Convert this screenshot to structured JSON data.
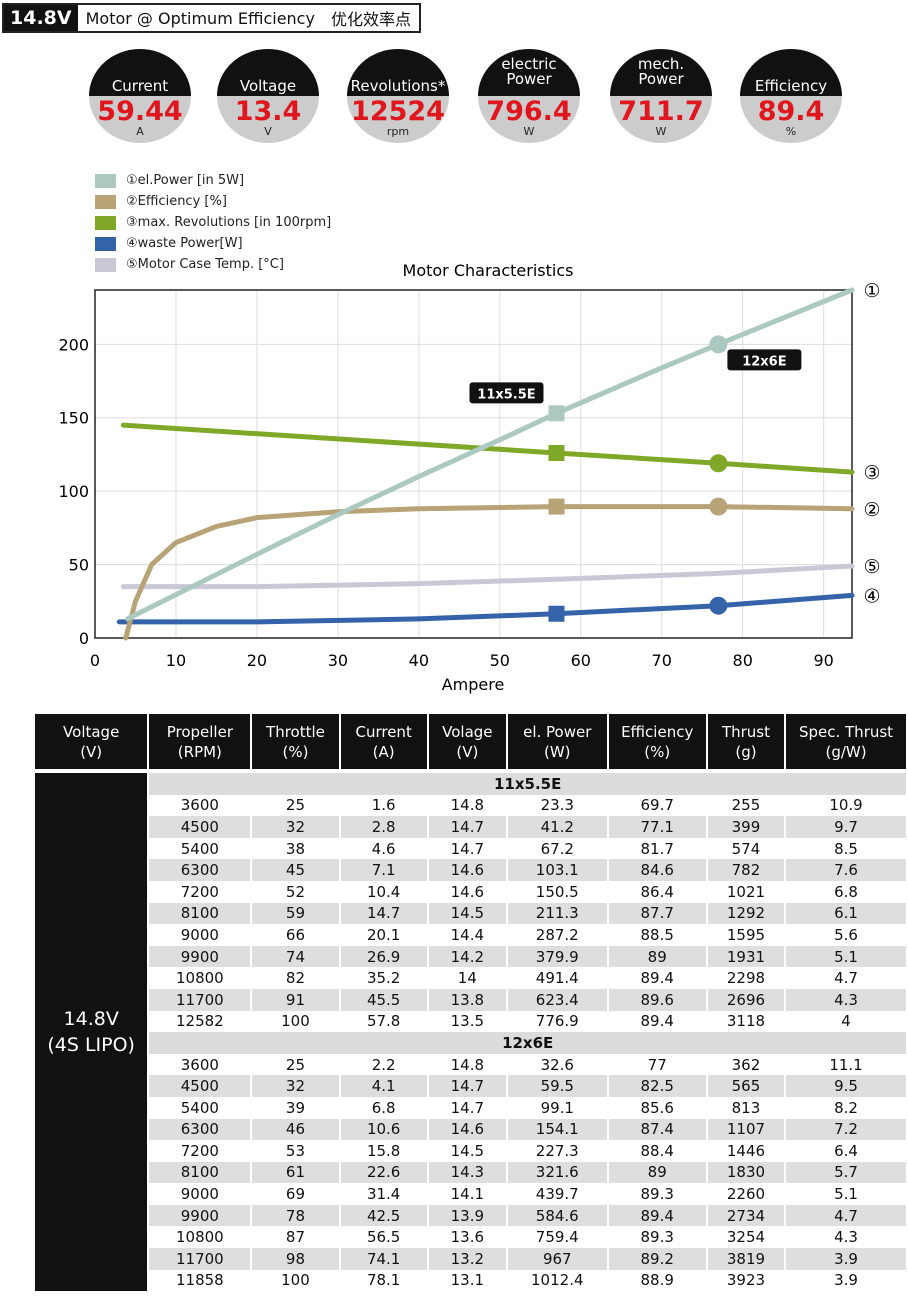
{
  "header": {
    "voltage": "14.8V",
    "title": "Motor @ Optimum Efficiency",
    "title_cn": "优化效率点"
  },
  "gauges": [
    {
      "label": "Current",
      "value": "59.44",
      "unit": "A"
    },
    {
      "label": "Voltage",
      "value": "13.4",
      "unit": "V"
    },
    {
      "label": "Revolutions*",
      "value": "12524",
      "unit": "rpm"
    },
    {
      "label": "electric Power",
      "value": "796.4",
      "unit": "W"
    },
    {
      "label": "mech. Power",
      "value": "711.7",
      "unit": "W"
    },
    {
      "label": "Efficiency",
      "value": "89.4",
      "unit": "%"
    }
  ],
  "chart_data": {
    "type": "line",
    "title": "Motor Characteristics",
    "xlabel": "Ampere",
    "ylabel": "",
    "xlim": [
      0,
      93.5
    ],
    "ylim": [
      0,
      237
    ],
    "xticks": [
      0,
      10,
      20,
      30,
      40,
      50,
      60,
      70,
      80,
      90
    ],
    "yticks": [
      0,
      50,
      100,
      150,
      200
    ],
    "grid": true,
    "legend_placement": "top-left",
    "series": [
      {
        "name": "①el.Power [in 5W]",
        "end_label": "①",
        "color": "#abc9c1",
        "points": [
          [
            4,
            13
          ],
          [
            20,
            57
          ],
          [
            30,
            84
          ],
          [
            40,
            110
          ],
          [
            50,
            135
          ],
          [
            57,
            153
          ],
          [
            70,
            184
          ],
          [
            77,
            200
          ],
          [
            93.5,
            237
          ]
        ]
      },
      {
        "name": "②Efficiency [%]",
        "end_label": "②",
        "color": "#b8a377",
        "points": [
          [
            3.8,
            0
          ],
          [
            5,
            25
          ],
          [
            7,
            50
          ],
          [
            10,
            65
          ],
          [
            15,
            76
          ],
          [
            20,
            82
          ],
          [
            30,
            86
          ],
          [
            40,
            88
          ],
          [
            57,
            89.5
          ],
          [
            77,
            89.5
          ],
          [
            93.5,
            88
          ]
        ]
      },
      {
        "name": "③max. Revolutions [in 100rpm]",
        "end_label": "③",
        "color": "#80a828",
        "points": [
          [
            3.5,
            145
          ],
          [
            57,
            126
          ],
          [
            77,
            119
          ],
          [
            93.5,
            113
          ]
        ]
      },
      {
        "name": "④waste Power[W]",
        "end_label": "④",
        "color": "#3563aa",
        "points": [
          [
            3,
            11
          ],
          [
            20,
            11
          ],
          [
            40,
            13
          ],
          [
            57,
            16.5
          ],
          [
            77,
            22
          ],
          [
            93.5,
            29
          ]
        ]
      },
      {
        "name": "⑤Motor Case Temp. [°C]",
        "end_label": "⑤",
        "color": "#c9c8d6",
        "points": [
          [
            3.5,
            35
          ],
          [
            20,
            35
          ],
          [
            40,
            37
          ],
          [
            57,
            40
          ],
          [
            77,
            44
          ],
          [
            93.5,
            49
          ]
        ]
      }
    ],
    "annotations": [
      {
        "label": "11x5.5E",
        "x": 57,
        "marker": "square",
        "series_values": [
          153,
          89.5,
          126,
          16.5
        ]
      },
      {
        "label": "12x6E",
        "x": 77,
        "marker": "circle",
        "series_values": [
          200,
          89.5,
          119,
          22
        ]
      }
    ]
  },
  "table": {
    "headers": [
      "Voltage\n(V)",
      "Propeller\n(RPM)",
      "Throttle\n(%)",
      "Current\n(A)",
      "Volage\n(V)",
      "el. Power\n(W)",
      "Efficiency\n(%)",
      "Thrust\n(g)",
      "Spec. Thrust\n(g/W)"
    ],
    "voltage_cell": "14.8V\n(4S LIPO)",
    "groups": [
      {
        "name": "11x5.5E",
        "rows": [
          [
            "3600",
            "25",
            "1.6",
            "14.8",
            "23.3",
            "69.7",
            "255",
            "10.9"
          ],
          [
            "4500",
            "32",
            "2.8",
            "14.7",
            "41.2",
            "77.1",
            "399",
            "9.7"
          ],
          [
            "5400",
            "38",
            "4.6",
            "14.7",
            "67.2",
            "81.7",
            "574",
            "8.5"
          ],
          [
            "6300",
            "45",
            "7.1",
            "14.6",
            "103.1",
            "84.6",
            "782",
            "7.6"
          ],
          [
            "7200",
            "52",
            "10.4",
            "14.6",
            "150.5",
            "86.4",
            "1021",
            "6.8"
          ],
          [
            "8100",
            "59",
            "14.7",
            "14.5",
            "211.3",
            "87.7",
            "1292",
            "6.1"
          ],
          [
            "9000",
            "66",
            "20.1",
            "14.4",
            "287.2",
            "88.5",
            "1595",
            "5.6"
          ],
          [
            "9900",
            "74",
            "26.9",
            "14.2",
            "379.9",
            "89",
            "1931",
            "5.1"
          ],
          [
            "10800",
            "82",
            "35.2",
            "14",
            "491.4",
            "89.4",
            "2298",
            "4.7"
          ],
          [
            "11700",
            "91",
            "45.5",
            "13.8",
            "623.4",
            "89.6",
            "2696",
            "4.3"
          ],
          [
            "12582",
            "100",
            "57.8",
            "13.5",
            "776.9",
            "89.4",
            "3118",
            "4"
          ]
        ]
      },
      {
        "name": "12x6E",
        "rows": [
          [
            "3600",
            "25",
            "2.2",
            "14.8",
            "32.6",
            "77",
            "362",
            "11.1"
          ],
          [
            "4500",
            "32",
            "4.1",
            "14.7",
            "59.5",
            "82.5",
            "565",
            "9.5"
          ],
          [
            "5400",
            "39",
            "6.8",
            "14.7",
            "99.1",
            "85.6",
            "813",
            "8.2"
          ],
          [
            "6300",
            "46",
            "10.6",
            "14.6",
            "154.1",
            "87.4",
            "1107",
            "7.2"
          ],
          [
            "7200",
            "53",
            "15.8",
            "14.5",
            "227.3",
            "88.4",
            "1446",
            "6.4"
          ],
          [
            "8100",
            "61",
            "22.6",
            "14.3",
            "321.6",
            "89",
            "1830",
            "5.7"
          ],
          [
            "9000",
            "69",
            "31.4",
            "14.1",
            "439.7",
            "89.3",
            "2260",
            "5.1"
          ],
          [
            "9900",
            "78",
            "42.5",
            "13.9",
            "584.6",
            "89.4",
            "2734",
            "4.7"
          ],
          [
            "10800",
            "87",
            "56.5",
            "13.6",
            "759.4",
            "89.3",
            "3254",
            "4.3"
          ],
          [
            "11700",
            "98",
            "74.1",
            "13.2",
            "967",
            "89.2",
            "3819",
            "3.9"
          ],
          [
            "11858",
            "100",
            "78.1",
            "13.1",
            "1012.4",
            "88.9",
            "3923",
            "3.9"
          ]
        ]
      }
    ]
  }
}
